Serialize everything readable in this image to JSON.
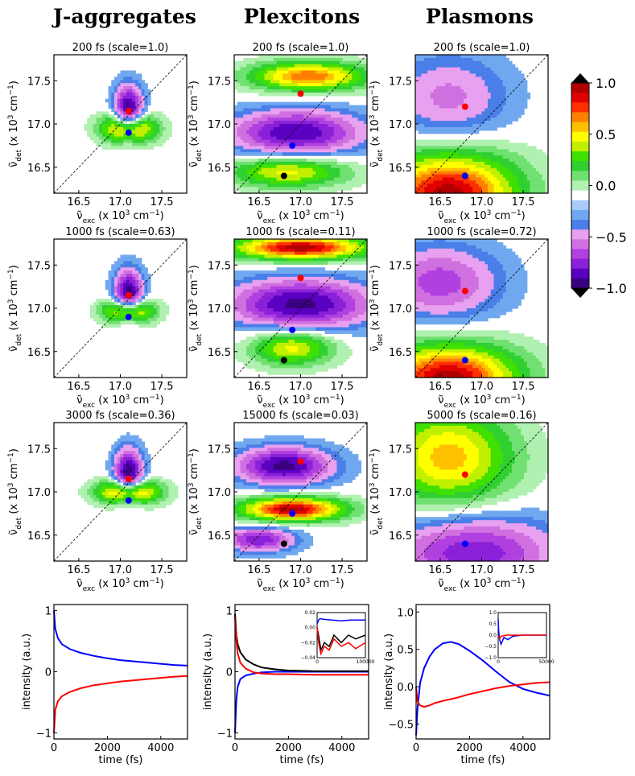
{
  "column_titles": [
    "J-aggregates",
    "Plexcitons",
    "Plasmons"
  ],
  "axis_labels": {
    "exc_main": "ν̃",
    "exc_sub": "exc",
    "exc_rest": " (x 10",
    "exc_sup": "3",
    "exc_unit": " cm",
    "exc_sup2": "−1",
    "exc_close": ")",
    "det_main": "ν̃",
    "det_sub": "det",
    "det_rest": " (x 10",
    "det_sup": "3",
    "det_unit": " cm",
    "det_sup2": "−1",
    "det_close": ")",
    "intensity": "intensity (a.u.)",
    "time": "time (fs)"
  },
  "colorbar": {
    "ticks": [
      "1.0",
      "0.5",
      "0.0",
      "−0.5",
      "−1.0"
    ],
    "tick_values": [
      1.0,
      0.5,
      0.0,
      -0.5,
      -1.0
    ],
    "colors": [
      "#3b0080",
      "#5a00c0",
      "#8a20d8",
      "#b040e0",
      "#d070e0",
      "#e8a0f0",
      "#4a7ee8",
      "#70a8f0",
      "#a8ccf8",
      "#ffffff",
      "#b0f0b0",
      "#70e070",
      "#30d030",
      "#40e000",
      "#c0f000",
      "#ffff00",
      "#ffc000",
      "#ff8000",
      "#ff3000",
      "#e00000",
      "#b00000"
    ]
  },
  "chart_data": [
    {
      "type": "heatmap",
      "column": "J-aggregates",
      "title": "200 fs (scale=1.0)",
      "xlabel": "exc",
      "ylabel": "det",
      "xlim": [
        16.2,
        17.8
      ],
      "ylim": [
        16.2,
        17.8
      ],
      "xticks": [
        "16.5",
        "17.0",
        "17.5"
      ],
      "yticks": [
        "16.5",
        "17.0",
        "17.5"
      ],
      "markers": [
        {
          "color": "red",
          "x": 17.1,
          "y": 17.15
        },
        {
          "color": "blue",
          "x": 17.1,
          "y": 16.9
        }
      ],
      "blobs": [
        {
          "x": 17.1,
          "y": 17.15,
          "sx": 0.12,
          "sy": 0.2,
          "a": -1
        },
        {
          "x": 17.1,
          "y": 16.95,
          "sx": 0.22,
          "sy": 0.12,
          "a": 1
        }
      ]
    },
    {
      "type": "heatmap",
      "column": "Plexcitons",
      "title": "200 fs (scale=1.0)",
      "xlabel": "exc",
      "ylabel": "det",
      "xlim": [
        16.2,
        17.8
      ],
      "ylim": [
        16.2,
        17.8
      ],
      "xticks": [
        "16.5",
        "17.0",
        "17.5"
      ],
      "yticks": [
        "16.5",
        "17.0",
        "17.5"
      ],
      "markers": [
        {
          "color": "red",
          "x": 17.0,
          "y": 17.35
        },
        {
          "color": "blue",
          "x": 16.9,
          "y": 16.75
        },
        {
          "color": "black",
          "x": 16.8,
          "y": 16.4
        }
      ],
      "blobs": [
        {
          "x": 17.1,
          "y": 17.55,
          "sx": 0.5,
          "sy": 0.12,
          "a": 0.8
        },
        {
          "x": 16.95,
          "y": 16.9,
          "sx": 0.55,
          "sy": 0.18,
          "a": -0.85
        },
        {
          "x": 16.85,
          "y": 16.45,
          "sx": 0.5,
          "sy": 0.13,
          "a": 0.6
        }
      ]
    },
    {
      "type": "heatmap",
      "column": "Plasmons",
      "title": "200 fs (scale=1.0)",
      "xlabel": "exc",
      "ylabel": "det",
      "xlim": [
        16.2,
        17.8
      ],
      "ylim": [
        16.2,
        17.8
      ],
      "xticks": [
        "16.5",
        "17.0",
        "17.5"
      ],
      "yticks": [
        "16.5",
        "17.0",
        "17.5"
      ],
      "markers": [
        {
          "color": "red",
          "x": 16.8,
          "y": 17.2
        },
        {
          "color": "blue",
          "x": 16.8,
          "y": 16.4
        }
      ],
      "blobs": [
        {
          "x": 16.6,
          "y": 17.3,
          "sx": 0.5,
          "sy": 0.35,
          "a": -0.4
        },
        {
          "x": 16.6,
          "y": 16.2,
          "sx": 0.6,
          "sy": 0.35,
          "a": 1
        }
      ]
    },
    {
      "type": "heatmap",
      "column": "J-aggregates",
      "title": "1000 fs (scale=0.63)",
      "xlabel": "exc",
      "ylabel": "det",
      "xlim": [
        16.2,
        17.8
      ],
      "ylim": [
        16.2,
        17.8
      ],
      "xticks": [
        "16.5",
        "17.0",
        "17.5"
      ],
      "yticks": [
        "16.5",
        "17.0",
        "17.5"
      ],
      "markers": [
        {
          "color": "red",
          "x": 17.1,
          "y": 17.15
        },
        {
          "color": "blue",
          "x": 17.1,
          "y": 16.9
        }
      ],
      "blobs": [
        {
          "x": 17.1,
          "y": 17.15,
          "sx": 0.12,
          "sy": 0.2,
          "a": -1
        },
        {
          "x": 17.1,
          "y": 16.97,
          "sx": 0.2,
          "sy": 0.1,
          "a": 1
        }
      ]
    },
    {
      "type": "heatmap",
      "column": "Plexcitons",
      "title": "1000 fs (scale=0.11)",
      "xlabel": "exc",
      "ylabel": "det",
      "xlim": [
        16.2,
        17.8
      ],
      "ylim": [
        16.2,
        17.8
      ],
      "xticks": [
        "16.5",
        "17.0",
        "17.5"
      ],
      "yticks": [
        "16.5",
        "17.0",
        "17.5"
      ],
      "markers": [
        {
          "color": "red",
          "x": 17.0,
          "y": 17.35
        },
        {
          "color": "blue",
          "x": 16.9,
          "y": 16.75
        },
        {
          "color": "black",
          "x": 16.8,
          "y": 16.4
        }
      ],
      "blobs": [
        {
          "x": 17.0,
          "y": 17.7,
          "sx": 0.6,
          "sy": 0.1,
          "a": 1
        },
        {
          "x": 17.0,
          "y": 17.05,
          "sx": 0.6,
          "sy": 0.2,
          "a": -0.9
        },
        {
          "x": 16.9,
          "y": 16.55,
          "sx": 0.35,
          "sy": 0.15,
          "a": 0.6
        }
      ]
    },
    {
      "type": "heatmap",
      "column": "Plasmons",
      "title": "1000 fs (scale=0.72)",
      "xlabel": "exc",
      "ylabel": "det",
      "xlim": [
        16.2,
        17.8
      ],
      "ylim": [
        16.2,
        17.8
      ],
      "xticks": [
        "16.5",
        "17.0",
        "17.5"
      ],
      "yticks": [
        "16.5",
        "17.0",
        "17.5"
      ],
      "markers": [
        {
          "color": "red",
          "x": 16.8,
          "y": 17.2
        },
        {
          "color": "blue",
          "x": 16.8,
          "y": 16.4
        }
      ],
      "blobs": [
        {
          "x": 16.5,
          "y": 17.3,
          "sx": 0.5,
          "sy": 0.3,
          "a": -0.55
        },
        {
          "x": 16.6,
          "y": 16.2,
          "sx": 0.6,
          "sy": 0.28,
          "a": 1
        }
      ]
    },
    {
      "type": "heatmap",
      "column": "J-aggregates",
      "title": "3000 fs (scale=0.36)",
      "xlabel": "exc",
      "ylabel": "det",
      "xlim": [
        16.2,
        17.8
      ],
      "ylim": [
        16.2,
        17.8
      ],
      "xticks": [
        "16.5",
        "17.0",
        "17.5"
      ],
      "yticks": [
        "16.5",
        "17.0",
        "17.5"
      ],
      "markers": [
        {
          "color": "red",
          "x": 17.1,
          "y": 17.15
        },
        {
          "color": "blue",
          "x": 17.1,
          "y": 16.9
        }
      ],
      "blobs": [
        {
          "x": 17.1,
          "y": 17.2,
          "sx": 0.12,
          "sy": 0.2,
          "a": -1
        },
        {
          "x": 17.1,
          "y": 17.0,
          "sx": 0.25,
          "sy": 0.1,
          "a": 1
        }
      ]
    },
    {
      "type": "heatmap",
      "column": "Plexcitons",
      "title": "15000 fs (scale=0.03)",
      "xlabel": "exc",
      "ylabel": "det",
      "xlim": [
        16.2,
        17.8
      ],
      "ylim": [
        16.2,
        17.8
      ],
      "xticks": [
        "16.5",
        "17.0",
        "17.5"
      ],
      "yticks": [
        "16.5",
        "17.0",
        "17.5"
      ],
      "markers": [
        {
          "color": "red",
          "x": 17.0,
          "y": 17.35
        },
        {
          "color": "blue",
          "x": 16.9,
          "y": 16.75
        },
        {
          "color": "black",
          "x": 16.8,
          "y": 16.4
        }
      ],
      "blobs": [
        {
          "x": 16.8,
          "y": 17.3,
          "sx": 0.4,
          "sy": 0.15,
          "a": -0.9
        },
        {
          "x": 16.9,
          "y": 16.8,
          "sx": 0.45,
          "sy": 0.1,
          "a": 1
        },
        {
          "x": 16.5,
          "y": 16.45,
          "sx": 0.3,
          "sy": 0.1,
          "a": -0.7
        }
      ]
    },
    {
      "type": "heatmap",
      "column": "Plasmons",
      "title": "5000 fs (scale=0.16)",
      "xlabel": "exc",
      "ylabel": "det",
      "xlim": [
        16.2,
        17.8
      ],
      "ylim": [
        16.2,
        17.8
      ],
      "xticks": [
        "16.5",
        "17.0",
        "17.5"
      ],
      "yticks": [
        "16.5",
        "17.0",
        "17.5"
      ],
      "markers": [
        {
          "color": "red",
          "x": 16.8,
          "y": 17.2
        },
        {
          "color": "blue",
          "x": 16.8,
          "y": 16.4
        }
      ],
      "blobs": [
        {
          "x": 16.6,
          "y": 17.4,
          "sx": 0.55,
          "sy": 0.4,
          "a": 0.7
        },
        {
          "x": 16.9,
          "y": 16.3,
          "sx": 0.7,
          "sy": 0.3,
          "a": -0.7
        }
      ]
    },
    {
      "type": "line",
      "column": "J-aggregates",
      "xlabel": "time (fs)",
      "ylabel": "intensity (a.u.)",
      "xlim": [
        0,
        5000
      ],
      "ylim": [
        -1.1,
        1.1
      ],
      "xticks": [
        0,
        2000,
        4000
      ],
      "xticklabels": [
        "0",
        "2000",
        "4000"
      ],
      "yticks": [
        -1,
        0,
        1
      ],
      "yticklabels": [
        "−1",
        "0",
        "1"
      ],
      "series": [
        {
          "name": "blue",
          "color": "blue",
          "x": [
            0,
            50,
            150,
            300,
            600,
            1000,
            1500,
            2000,
            2500,
            3000,
            3500,
            4000,
            4500,
            5000
          ],
          "y": [
            1.0,
            0.7,
            0.55,
            0.45,
            0.37,
            0.31,
            0.26,
            0.22,
            0.19,
            0.17,
            0.15,
            0.13,
            0.11,
            0.1
          ]
        },
        {
          "name": "red",
          "color": "red",
          "x": [
            0,
            50,
            150,
            300,
            600,
            1000,
            1500,
            2000,
            2500,
            3000,
            3500,
            4000,
            4500,
            5000
          ],
          "y": [
            -1.0,
            -0.62,
            -0.48,
            -0.4,
            -0.33,
            -0.27,
            -0.22,
            -0.19,
            -0.16,
            -0.14,
            -0.12,
            -0.1,
            -0.08,
            -0.07
          ]
        }
      ]
    },
    {
      "type": "line",
      "column": "Plexcitons",
      "xlabel": "time (fs)",
      "ylabel": "intensity (a.u.)",
      "xlim": [
        0,
        5000
      ],
      "ylim": [
        -1.1,
        1.1
      ],
      "xticks": [
        0,
        2000,
        4000
      ],
      "xticklabels": [
        "0",
        "2000",
        "4000"
      ],
      "yticks": [
        -1,
        0,
        1
      ],
      "yticklabels": [
        "−1",
        "0",
        "1"
      ],
      "series": [
        {
          "name": "blue",
          "color": "blue",
          "x": [
            0,
            50,
            100,
            200,
            400,
            700,
            1000,
            1500,
            2000,
            3000,
            4000,
            5000
          ],
          "y": [
            -1.0,
            -0.45,
            -0.25,
            -0.12,
            -0.06,
            -0.03,
            -0.01,
            0.0,
            0.0,
            0.0,
            0.0,
            0.0
          ]
        },
        {
          "name": "black",
          "color": "black",
          "x": [
            0,
            50,
            100,
            200,
            400,
            700,
            1000,
            1500,
            2000,
            3000,
            4000,
            5000
          ],
          "y": [
            0.95,
            0.6,
            0.45,
            0.32,
            0.2,
            0.12,
            0.07,
            0.04,
            0.02,
            0.01,
            0.01,
            0.01
          ]
        },
        {
          "name": "red",
          "color": "red",
          "x": [
            0,
            50,
            100,
            200,
            400,
            700,
            1000,
            1500,
            2000,
            3000,
            4000,
            5000
          ],
          "y": [
            0.9,
            0.5,
            0.3,
            0.15,
            0.05,
            -0.01,
            -0.03,
            -0.04,
            -0.04,
            -0.05,
            -0.05,
            -0.05
          ]
        }
      ],
      "inset": {
        "xlim": [
          0,
          100000
        ],
        "ylim": [
          -0.04,
          0.02
        ],
        "xticklabels": [
          "0",
          "100000"
        ],
        "yticklabels": [
          "0.02",
          "0.00",
          "−0.02",
          "−0.04"
        ],
        "series": [
          {
            "color": "blue",
            "x": [
              0,
              3000,
              6000,
              15000,
              30000,
              50000,
              70000,
              100000
            ],
            "y": [
              0.005,
              0.01,
              0.012,
              0.011,
              0.01,
              0.009,
              0.01,
              0.01
            ]
          },
          {
            "color": "black",
            "x": [
              0,
              3000,
              8000,
              15000,
              25000,
              35000,
              50000,
              65000,
              80000,
              100000
            ],
            "y": [
              0.0,
              -0.01,
              -0.03,
              -0.02,
              -0.025,
              -0.01,
              -0.02,
              -0.01,
              -0.015,
              -0.01
            ]
          },
          {
            "color": "red",
            "x": [
              0,
              3000,
              8000,
              15000,
              25000,
              35000,
              50000,
              65000,
              80000,
              100000
            ],
            "y": [
              0.0,
              -0.02,
              -0.035,
              -0.025,
              -0.03,
              -0.015,
              -0.025,
              -0.02,
              -0.028,
              -0.02
            ]
          }
        ]
      }
    },
    {
      "type": "line",
      "column": "Plasmons",
      "xlabel": "time (fs)",
      "ylabel": "intensity (a.u.)",
      "xlim": [
        0,
        5000
      ],
      "ylim": [
        -0.7,
        1.1
      ],
      "xticks": [
        0,
        2000,
        4000
      ],
      "xticklabels": [
        "0",
        "2000",
        "4000"
      ],
      "yticks": [
        -0.5,
        0,
        0.5,
        1.0
      ],
      "yticklabels": [
        "−0.5",
        "0.0",
        "0.5",
        "1.0"
      ],
      "series": [
        {
          "name": "blue",
          "color": "blue",
          "x": [
            0,
            50,
            150,
            300,
            500,
            700,
            1000,
            1300,
            1600,
            2000,
            2500,
            3000,
            3500,
            4000,
            4500,
            5000
          ],
          "y": [
            -0.65,
            -0.3,
            0.05,
            0.25,
            0.4,
            0.5,
            0.58,
            0.6,
            0.57,
            0.48,
            0.35,
            0.2,
            0.06,
            -0.03,
            -0.08,
            -0.12
          ]
        },
        {
          "name": "red",
          "color": "red",
          "x": [
            0,
            50,
            150,
            300,
            500,
            700,
            1000,
            1500,
            2000,
            2500,
            3000,
            3500,
            4000,
            4500,
            5000
          ],
          "y": [
            0.0,
            -0.2,
            -0.25,
            -0.27,
            -0.25,
            -0.22,
            -0.19,
            -0.15,
            -0.1,
            -0.06,
            -0.02,
            0.01,
            0.03,
            0.05,
            0.06
          ]
        }
      ],
      "inset": {
        "xlim": [
          0,
          50000
        ],
        "ylim": [
          -1.0,
          1.0
        ],
        "xticklabels": [
          "0",
          "50000"
        ],
        "yticklabels": [
          "1.0",
          "0.5",
          "0.0",
          "−0.5",
          "−1.0"
        ],
        "series": [
          {
            "color": "blue",
            "x": [
              0,
              500,
              1500,
              3000,
              6000,
              10000,
              15000,
              25000,
              35000,
              50000
            ],
            "y": [
              0.7,
              0.2,
              -0.2,
              -0.4,
              -0.1,
              -0.2,
              -0.05,
              0.0,
              0.0,
              0.0
            ]
          },
          {
            "color": "red",
            "x": [
              0,
              500,
              1500,
              3000,
              6000,
              10000,
              15000,
              25000,
              35000,
              50000
            ],
            "y": [
              0.0,
              -0.1,
              -0.15,
              -0.05,
              -0.02,
              0.0,
              0.0,
              0.0,
              0.0,
              0.0
            ]
          }
        ]
      }
    }
  ]
}
